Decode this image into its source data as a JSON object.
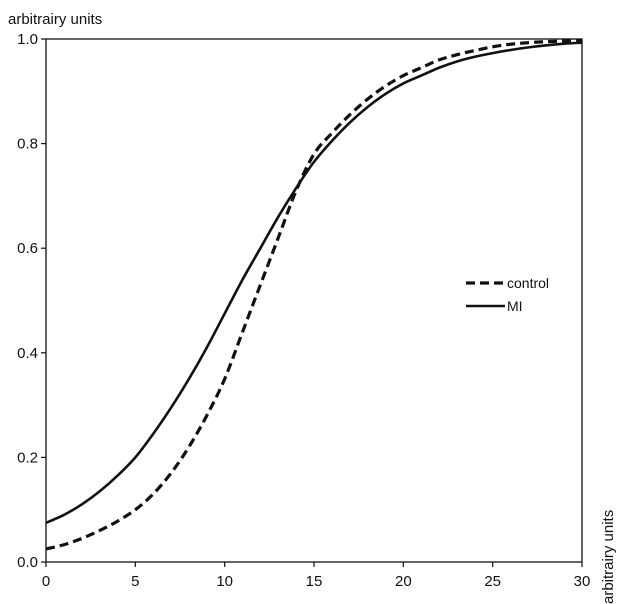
{
  "chart_data": {
    "type": "line",
    "title": "",
    "ylabel": "arbitrairy units",
    "xlabel": "arbitrairy units",
    "xlim": [
      0,
      30
    ],
    "ylim": [
      0.0,
      1.0
    ],
    "x_ticks": [
      "0",
      "5",
      "10",
      "15",
      "20",
      "25",
      "30"
    ],
    "y_ticks": [
      "0.0",
      "0.2",
      "0.4",
      "0.6",
      "0.8",
      "1.0"
    ],
    "grid": false,
    "legend_position": "right",
    "series": [
      {
        "name": "control",
        "style": "dashed",
        "color": "#111111",
        "x": [
          0,
          1,
          2,
          3,
          4,
          5,
          6,
          7,
          8,
          9,
          10,
          11,
          12,
          13,
          14,
          15,
          16,
          17,
          18,
          19,
          20,
          21,
          22,
          23,
          24,
          25,
          26,
          27,
          28,
          29,
          30
        ],
        "y": [
          0.025,
          0.033,
          0.045,
          0.06,
          0.078,
          0.1,
          0.13,
          0.17,
          0.22,
          0.28,
          0.35,
          0.44,
          0.53,
          0.62,
          0.71,
          0.78,
          0.82,
          0.855,
          0.885,
          0.91,
          0.93,
          0.945,
          0.96,
          0.97,
          0.978,
          0.985,
          0.99,
          0.993,
          0.995,
          0.996,
          0.997
        ]
      },
      {
        "name": "MI",
        "style": "solid",
        "color": "#111111",
        "x": [
          0,
          1,
          2,
          3,
          4,
          5,
          6,
          7,
          8,
          9,
          10,
          11,
          12,
          13,
          14,
          15,
          16,
          17,
          18,
          19,
          20,
          21,
          22,
          23,
          24,
          25,
          26,
          27,
          28,
          29,
          30
        ],
        "y": [
          0.075,
          0.09,
          0.11,
          0.135,
          0.165,
          0.2,
          0.245,
          0.295,
          0.35,
          0.41,
          0.475,
          0.54,
          0.6,
          0.66,
          0.715,
          0.765,
          0.805,
          0.84,
          0.87,
          0.895,
          0.915,
          0.93,
          0.945,
          0.957,
          0.966,
          0.973,
          0.979,
          0.984,
          0.988,
          0.991,
          0.993
        ]
      }
    ]
  }
}
